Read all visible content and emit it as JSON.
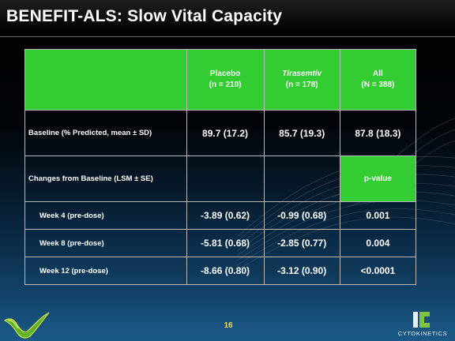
{
  "header": {
    "title": "BENEFIT-ALS: Slow Vital Capacity"
  },
  "table": {
    "columns": [
      {
        "line1": "Placebo",
        "line2": "(n = 210)",
        "italic": false
      },
      {
        "line1": "Tirasemtiv",
        "line2": "(n = 178)",
        "italic": true
      },
      {
        "line1": "All",
        "line2": "(N = 388)",
        "italic": false
      }
    ],
    "baseline": {
      "label": "Baseline (% Predicted, mean ± SD)",
      "values": [
        "89.7 (17.2)",
        "85.7 (19.3)",
        "87.8 (18.3)"
      ]
    },
    "changes": {
      "label": "Changes from Baseline (LSM ± SE)",
      "pvalue_label": "p-value"
    },
    "weeks": [
      {
        "label": "Week 4 (pre-dose)",
        "values": [
          "-3.89 (0.62)",
          "-0.99 (0.68)",
          "0.001"
        ]
      },
      {
        "label": "Week 8 (pre-dose)",
        "values": [
          "-5.81 (0.68)",
          "-2.85 (0.77)",
          "0.004"
        ]
      },
      {
        "label": "Week 12 (pre-dose)",
        "values": [
          "-8.66 (0.80)",
          "-3.12 (0.90)",
          "<0.0001"
        ]
      }
    ]
  },
  "footer": {
    "page_number": "16",
    "brand_name": "CYTOKINETICS",
    "page_number_color": "#f7e16b",
    "accent_green": "#33cc33"
  }
}
